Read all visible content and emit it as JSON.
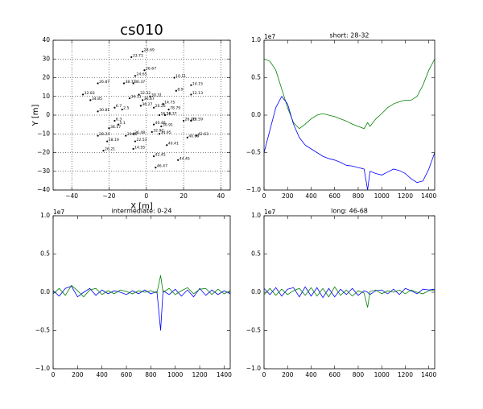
{
  "chart_data": [
    {
      "type": "scatter",
      "title": "cs010",
      "x_label": "X [m]",
      "y_label": "Y [m]",
      "color": "#000000",
      "grid": true,
      "xlim": [
        -50,
        45
      ],
      "ylim": [
        -40,
        40
      ],
      "xticks": [
        {
          "value": -40,
          "label": "−40"
        },
        {
          "value": -20,
          "label": "−20"
        },
        0,
        20,
        40
      ],
      "yticks": [
        {
          "value": -40,
          "label": "−40"
        },
        {
          "value": -30,
          "label": "−30"
        },
        {
          "value": -20,
          "label": "−20"
        },
        {
          "value": -10,
          "label": "−10"
        },
        0,
        10,
        20,
        30,
        40
      ],
      "labels": [
        "28.69",
        "33.71",
        "26.67",
        "24.65",
        "10.11",
        "26.87",
        "38.77",
        "36.37",
        "14.15",
        "8.9",
        "32.83",
        "32.32",
        "30.31",
        "12.13",
        "34.85",
        "34.31",
        "36.67",
        "14.75",
        "36.27",
        "26.26",
        "78.79",
        "6.7",
        "2.5",
        "30.81",
        "16.16",
        "16.37",
        "18.59",
        "26.46",
        "6.3",
        "5.1",
        "38.17",
        "30.91",
        "40.48",
        "32.92",
        "34.95",
        "26.48",
        "20.32",
        "42.63",
        "40.69",
        "28.24",
        "18.19",
        "22.53",
        "40.41",
        "14.55",
        "26.21",
        "42.45",
        "44.45",
        "46.47"
      ],
      "x": [
        -2,
        -8,
        -1,
        -6,
        15,
        -26,
        -12,
        -7,
        24,
        16,
        -34,
        -4,
        2,
        24,
        -30,
        -9,
        -2,
        9,
        -3,
        4,
        12,
        -17,
        -13,
        -26,
        7,
        10,
        24,
        20,
        -17,
        -15,
        -20,
        8,
        4,
        3,
        7,
        -7,
        -11,
        27,
        22,
        -26,
        -21,
        -6,
        11,
        -7,
        -23,
        4,
        17,
        5
      ],
      "values": [
        34,
        31,
        24,
        21,
        20,
        17,
        17,
        17,
        16,
        13,
        11,
        11,
        10,
        11,
        8,
        9,
        8,
        6,
        5,
        4,
        3,
        4,
        3,
        2,
        0,
        0,
        -3,
        -3,
        -3,
        -5,
        -7,
        -6,
        -5,
        -9,
        -10,
        -10,
        -11,
        -11,
        -12,
        -11,
        -14,
        -14,
        -16,
        -18,
        -19,
        -22,
        -24,
        -28
      ]
    },
    {
      "type": "line",
      "title": "short: 28-32",
      "offset_text": "1e7",
      "xlim": [
        0,
        1450
      ],
      "ylim": [
        -1,
        1
      ],
      "xticks": [
        0,
        200,
        400,
        600,
        800,
        1000,
        1200,
        1400
      ],
      "yticks": [
        {
          "value": -1,
          "label": "−1.0"
        },
        {
          "value": -0.5,
          "label": "−0.5"
        },
        {
          "value": 0,
          "label": "0.0"
        },
        {
          "value": 0.5,
          "label": "0.5"
        },
        {
          "value": 1,
          "label": "1.0"
        }
      ],
      "x": [
        0,
        50,
        100,
        150,
        200,
        250,
        300,
        350,
        400,
        450,
        500,
        550,
        600,
        650,
        700,
        750,
        800,
        850,
        880,
        900,
        950,
        1000,
        1050,
        1100,
        1150,
        1200,
        1250,
        1300,
        1350,
        1400,
        1450
      ],
      "series": [
        {
          "color": "#008000",
          "values": [
            0.75,
            0.72,
            0.6,
            0.35,
            0.1,
            -0.1,
            -0.18,
            -0.12,
            -0.05,
            0.0,
            0.02,
            0.0,
            -0.02,
            -0.05,
            -0.08,
            -0.12,
            -0.15,
            -0.18,
            -0.1,
            -0.15,
            -0.05,
            0.02,
            0.1,
            0.15,
            0.18,
            0.2,
            0.2,
            0.25,
            0.4,
            0.6,
            0.75
          ]
        },
        {
          "color": "#0000ff",
          "values": [
            -0.5,
            -0.2,
            0.1,
            0.25,
            0.15,
            -0.12,
            -0.3,
            -0.4,
            -0.45,
            -0.5,
            -0.55,
            -0.58,
            -0.6,
            -0.63,
            -0.67,
            -0.68,
            -0.7,
            -0.72,
            -1.0,
            -0.75,
            -0.78,
            -0.8,
            -0.76,
            -0.72,
            -0.74,
            -0.78,
            -0.85,
            -0.9,
            -0.88,
            -0.72,
            -0.5
          ]
        }
      ]
    },
    {
      "type": "line",
      "title": "intermediate: 0-24",
      "offset_text": "1e7",
      "xlim": [
        0,
        1450
      ],
      "ylim": [
        -1,
        1
      ],
      "xticks": [
        0,
        200,
        400,
        600,
        800,
        1000,
        1200,
        1400
      ],
      "yticks": [
        {
          "value": -1,
          "label": "−1.0"
        },
        {
          "value": -0.5,
          "label": "−0.5"
        },
        {
          "value": 0,
          "label": "0.0"
        },
        {
          "value": 0.5,
          "label": "0.5"
        },
        {
          "value": 1,
          "label": "1.0"
        }
      ],
      "x": [
        0,
        50,
        100,
        150,
        200,
        250,
        300,
        350,
        400,
        450,
        500,
        550,
        600,
        650,
        700,
        750,
        800,
        850,
        880,
        900,
        950,
        1000,
        1050,
        1100,
        1150,
        1200,
        1250,
        1300,
        1350,
        1400,
        1450
      ],
      "series": [
        {
          "color": "#0000ff",
          "values": [
            0.02,
            -0.05,
            0.05,
            0.08,
            -0.06,
            0.0,
            0.05,
            -0.04,
            0.03,
            -0.02,
            0.02,
            0.0,
            -0.03,
            0.02,
            -0.02,
            0.03,
            -0.02,
            0.01,
            -0.5,
            0.02,
            -0.03,
            0.04,
            -0.05,
            0.03,
            -0.06,
            0.05,
            -0.04,
            0.03,
            -0.03,
            0.02,
            -0.02
          ]
        },
        {
          "color": "#008000",
          "values": [
            -0.02,
            0.05,
            -0.04,
            0.09,
            0.02,
            -0.06,
            0.03,
            0.05,
            -0.03,
            0.02,
            -0.02,
            0.03,
            0.01,
            -0.02,
            0.02,
            0.0,
            0.02,
            -0.01,
            0.22,
            0.0,
            0.05,
            -0.03,
            0.02,
            0.06,
            -0.02,
            0.04,
            0.05,
            -0.03,
            0.04,
            -0.02,
            0.02
          ]
        }
      ]
    },
    {
      "type": "line",
      "title": "long: 46-68",
      "offset_text": "1e7",
      "xlim": [
        0,
        1450
      ],
      "ylim": [
        -1,
        1
      ],
      "xticks": [
        0,
        200,
        400,
        600,
        800,
        1000,
        1200,
        1400
      ],
      "yticks": [
        {
          "value": -1,
          "label": "−1.0"
        },
        {
          "value": -0.5,
          "label": "−0.5"
        },
        {
          "value": 0,
          "label": "0.0"
        },
        {
          "value": 0.5,
          "label": "0.5"
        },
        {
          "value": 1,
          "label": "1.0"
        }
      ],
      "x": [
        0,
        50,
        100,
        150,
        200,
        250,
        300,
        350,
        400,
        450,
        500,
        550,
        600,
        650,
        700,
        750,
        800,
        850,
        880,
        900,
        950,
        1000,
        1050,
        1100,
        1150,
        1200,
        1250,
        1300,
        1350,
        1400,
        1450
      ],
      "series": [
        {
          "color": "#0000ff",
          "values": [
            0.05,
            -0.03,
            0.06,
            -0.05,
            0.04,
            0.06,
            -0.06,
            0.07,
            -0.05,
            0.06,
            -0.07,
            0.05,
            -0.06,
            0.04,
            -0.03,
            0.05,
            -0.04,
            0.02,
            0.0,
            -0.03,
            0.02,
            0.03,
            -0.02,
            0.04,
            -0.03,
            0.05,
            0.02,
            -0.02,
            0.04,
            0.03,
            0.04
          ]
        },
        {
          "color": "#008000",
          "values": [
            -0.03,
            0.05,
            -0.04,
            0.04,
            -0.03,
            0.02,
            0.05,
            -0.04,
            0.06,
            -0.05,
            0.05,
            -0.06,
            0.07,
            -0.04,
            0.03,
            -0.05,
            0.02,
            -0.01,
            -0.2,
            0.01,
            0.03,
            -0.02,
            0.02,
            0.0,
            0.03,
            -0.02,
            0.03,
            0.0,
            -0.02,
            0.02,
            0.03
          ]
        }
      ]
    }
  ]
}
